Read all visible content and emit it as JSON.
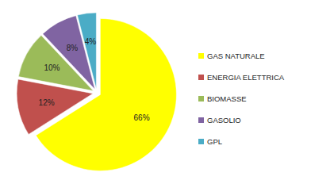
{
  "chart_data": {
    "type": "pie",
    "categories": [
      "GAS NATURALE",
      "ENERGIA ELETTRICA",
      "BIOMASSE",
      "GASOLIO",
      "GPL"
    ],
    "values": [
      66,
      12,
      10,
      8,
      4
    ],
    "value_labels": [
      "66%",
      "12%",
      "10%",
      "8%",
      "4%"
    ],
    "colors": [
      "#ffff00",
      "#c0504d",
      "#9bbb59",
      "#8064a2",
      "#4bacc6"
    ],
    "data_labels": true,
    "legend": "right"
  }
}
